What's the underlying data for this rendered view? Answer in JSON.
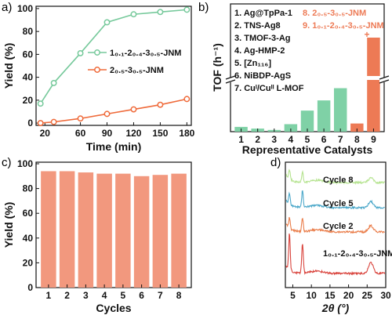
{
  "panels": {
    "a": "a)",
    "b": "b)",
    "c": "c)",
    "d": "d)"
  },
  "colors": {
    "green": "#7fd1a6",
    "green_line": "#76c99b",
    "orange": "#ed7a55",
    "orange_line": "#ef6a3a",
    "bar_c": "#f2987e",
    "xrd_cycle8": "#b5e38f",
    "xrd_cycle5": "#4aa7c9",
    "xrd_cycle2": "#ea7d4a",
    "xrd_fresh": "#d9443d"
  },
  "chart_data": [
    {
      "id": "a",
      "type": "line",
      "xlabel": "Time (min)",
      "ylabel": "Yield (%)",
      "xlim": [
        10,
        185
      ],
      "ylim": [
        -2,
        102
      ],
      "xticks": [
        20,
        60,
        90,
        120,
        150,
        180
      ],
      "yticks": [
        0,
        20,
        40,
        60,
        80,
        100
      ],
      "legend_placement": "center-right",
      "series": [
        {
          "name": "1₀.₁-2₀.₄-3₀.₅-JNM",
          "color": "#76c99b",
          "x": [
            15,
            30,
            60,
            90,
            120,
            150,
            180
          ],
          "y": [
            17,
            35,
            61,
            88,
            95,
            97,
            99
          ]
        },
        {
          "name": "2₀.₅-3₀.₅-JNM",
          "color": "#ef6a3a",
          "x": [
            15,
            30,
            60,
            90,
            120,
            150,
            180
          ],
          "y": [
            0,
            1,
            4,
            8,
            12,
            16,
            21
          ]
        }
      ]
    },
    {
      "id": "b",
      "type": "bar",
      "xlabel": "Representative Catalysts",
      "ylabel": "TOF (h⁻¹)",
      "categories": [
        "1",
        "2",
        "3",
        "4",
        "5",
        "6",
        "7",
        "8",
        "9"
      ],
      "values": [
        14,
        9,
        5,
        22,
        62,
        92,
        128,
        24,
        300
      ],
      "broken_axis": true,
      "break_value": 150,
      "legend_entries": [
        "1. Ag@TpPa-1",
        "2. TNS-Ag8",
        "3. TMOF-3-Ag",
        "4. Ag-HMP-2",
        "5. [Zn₁₁₆]",
        "6. NiBDP-AgS",
        "7. Cuᴵ/Cuᴵᴵ L-MOF",
        "8. 2₀.₅-3₀.₅-JNM",
        "9. 1₀.₁-2₀.₄-3₀.₅-JNM"
      ],
      "annotation": "+",
      "bar_colors": [
        "#7fd1a6",
        "#7fd1a6",
        "#7fd1a6",
        "#7fd1a6",
        "#7fd1a6",
        "#7fd1a6",
        "#7fd1a6",
        "#ed7a55",
        "#ed7a55"
      ]
    },
    {
      "id": "c",
      "type": "bar",
      "xlabel": "Cycles",
      "ylabel": "Yield (%)",
      "categories": [
        "1",
        "2",
        "3",
        "4",
        "5",
        "6",
        "7",
        "8"
      ],
      "values": [
        94,
        94,
        93,
        92,
        92,
        90,
        91,
        92
      ],
      "ylim": [
        0,
        100
      ],
      "yticks": [
        0,
        20,
        40,
        60,
        80,
        100
      ]
    },
    {
      "id": "d",
      "type": "line",
      "xlabel": "2θ (°)",
      "xlim": [
        3,
        30
      ],
      "xticks": [
        5,
        10,
        15,
        20,
        25,
        30
      ],
      "peak_positions_2theta": [
        4.1,
        7.6,
        26.0
      ],
      "series": [
        {
          "name": "Cycle 8",
          "color": "#b5e38f"
        },
        {
          "name": "Cycle 5",
          "color": "#4aa7c9"
        },
        {
          "name": "Cycle 2",
          "color": "#ea7d4a"
        },
        {
          "name": "1₀.₁-2₀.₄-3₀.₅-JNM",
          "color": "#d9443d"
        }
      ]
    }
  ]
}
